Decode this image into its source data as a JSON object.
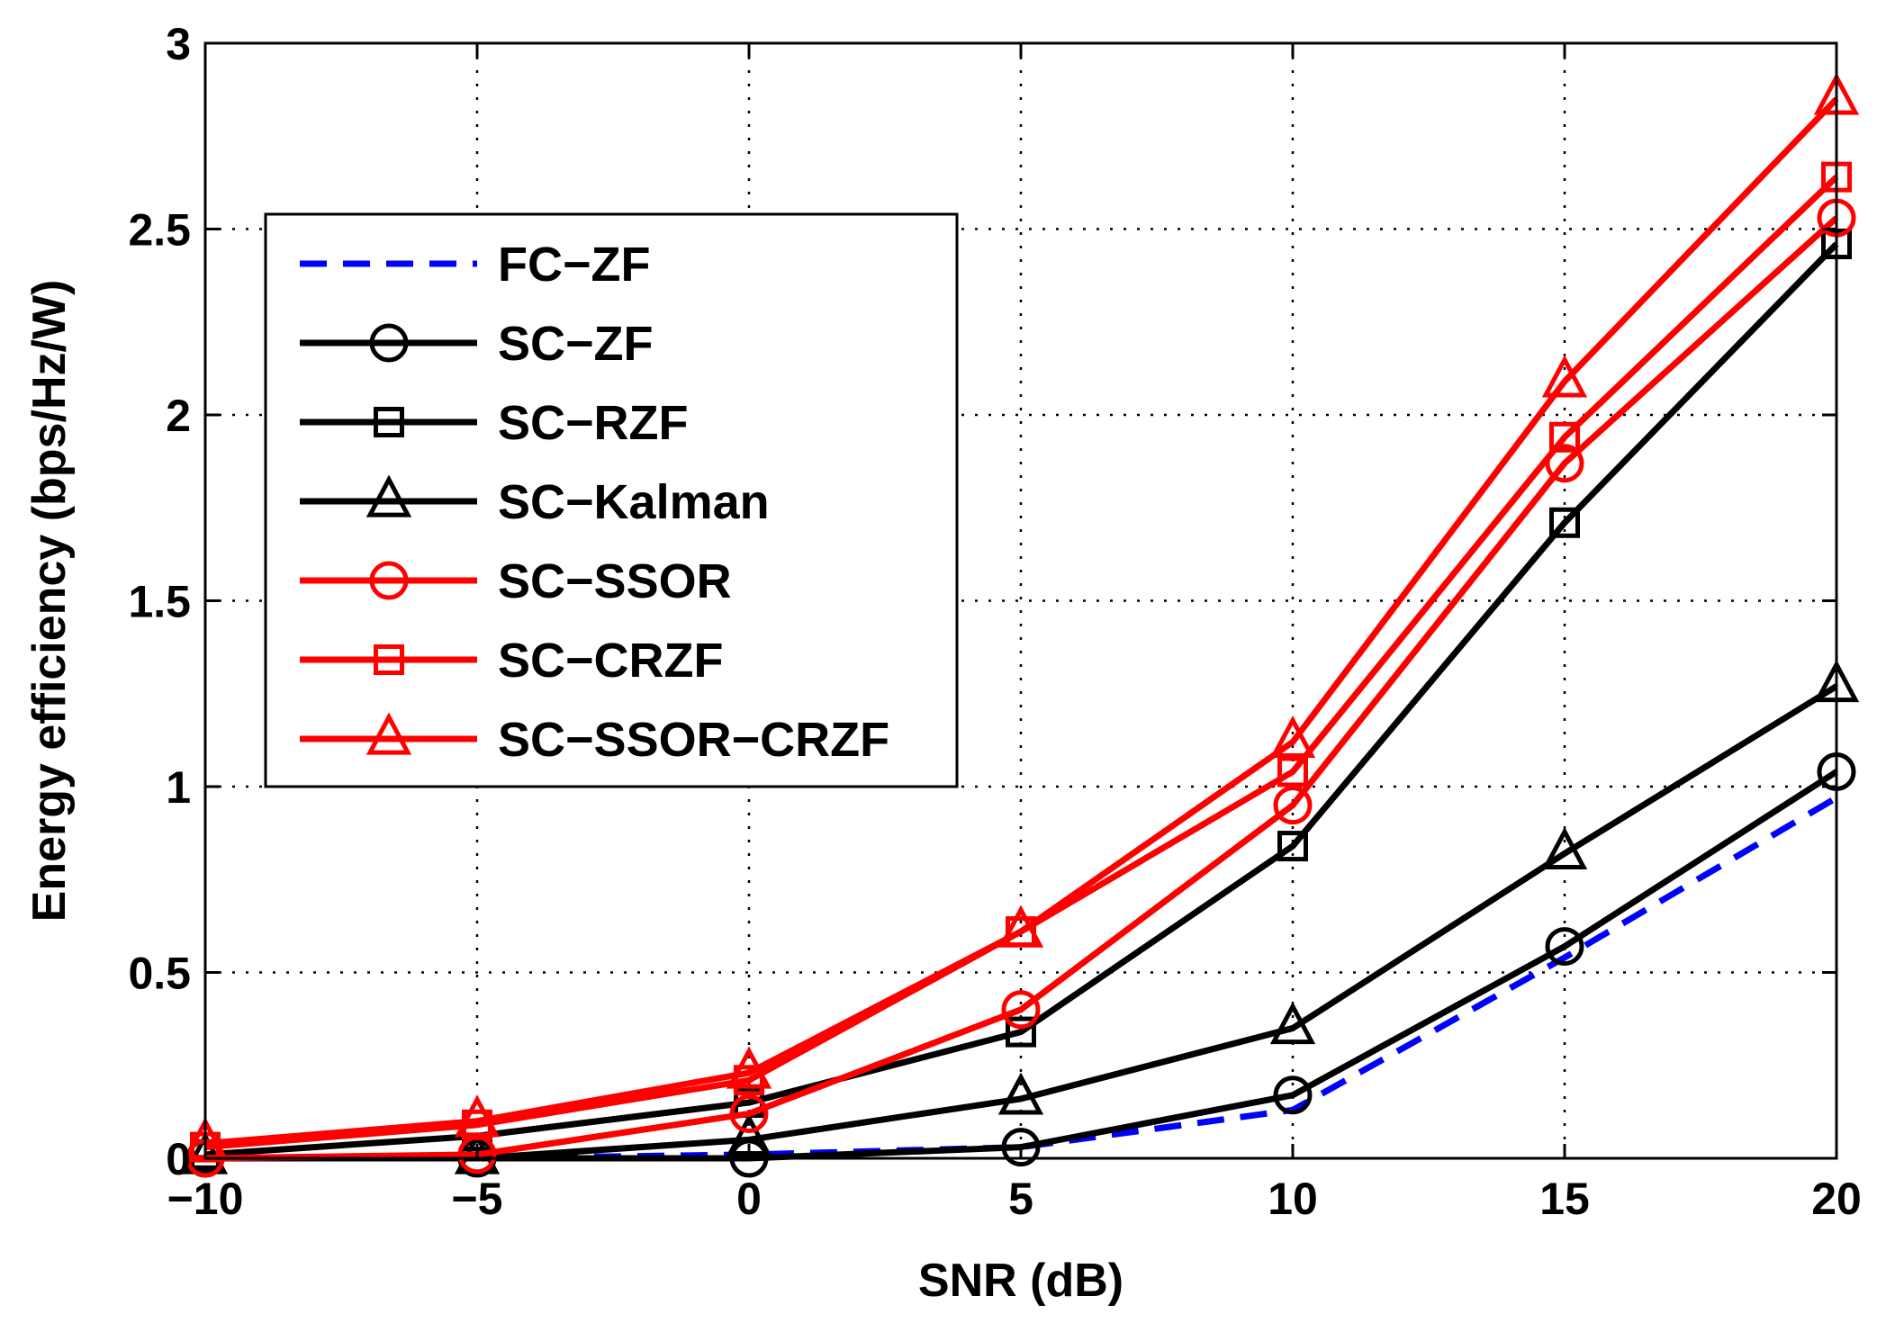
{
  "chart_data": {
    "type": "line",
    "title": "",
    "xlabel": "SNR (dB)",
    "ylabel": "Energy efficiency (bps/Hz/W)",
    "xlim": [
      -10,
      20
    ],
    "ylim": [
      0,
      3
    ],
    "xticks": [
      -10,
      -5,
      0,
      5,
      10,
      15,
      20
    ],
    "xtick_labels": [
      "−10",
      "−5",
      "0",
      "5",
      "10",
      "15",
      "20"
    ],
    "yticks": [
      0,
      0.5,
      1,
      1.5,
      2,
      2.5,
      3
    ],
    "ytick_labels": [
      "0",
      "0.5",
      "1",
      "1.5",
      "2",
      "2.5",
      "3"
    ],
    "grid": true,
    "legend_position": "upper-left",
    "x": [
      -10,
      -5,
      0,
      5,
      10,
      15,
      20
    ],
    "series": [
      {
        "name": "FC−ZF",
        "color": "#0000ff",
        "style": "dashed",
        "marker": "none",
        "values": [
          0.0,
          0.0,
          0.01,
          0.03,
          0.13,
          0.54,
          0.97
        ]
      },
      {
        "name": "SC−ZF",
        "color": "#000000",
        "style": "solid",
        "marker": "circle",
        "values": [
          0.0,
          0.0,
          0.0,
          0.03,
          0.17,
          0.57,
          1.04
        ]
      },
      {
        "name": "SC−RZF",
        "color": "#000000",
        "style": "solid",
        "marker": "square",
        "values": [
          0.01,
          0.06,
          0.15,
          0.34,
          0.84,
          1.71,
          2.46
        ]
      },
      {
        "name": "SC−Kalman",
        "color": "#000000",
        "style": "solid",
        "marker": "triangle",
        "values": [
          0.0,
          0.0,
          0.05,
          0.16,
          0.35,
          0.82,
          1.27
        ]
      },
      {
        "name": "SC−SSOR",
        "color": "#ff0000",
        "style": "solid",
        "marker": "circle",
        "values": [
          0.0,
          0.01,
          0.12,
          0.4,
          0.95,
          1.87,
          2.53
        ]
      },
      {
        "name": "SC−CRZF",
        "color": "#ff0000",
        "style": "solid",
        "marker": "square",
        "values": [
          0.03,
          0.09,
          0.21,
          0.61,
          1.04,
          1.94,
          2.64
        ]
      },
      {
        "name": "SC−SSOR−CRZF",
        "color": "#ff0000",
        "style": "solid",
        "marker": "triangle",
        "values": [
          0.04,
          0.1,
          0.23,
          0.61,
          1.12,
          2.09,
          2.85
        ]
      }
    ]
  }
}
